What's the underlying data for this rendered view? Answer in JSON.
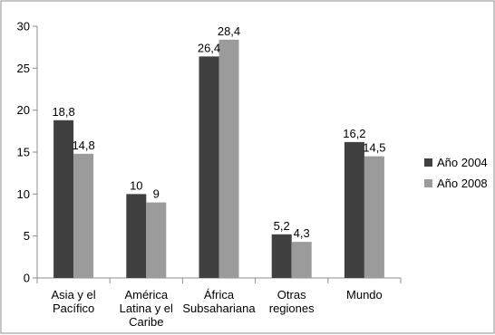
{
  "chart_data": {
    "type": "bar",
    "categories": [
      [
        "Asia y el",
        "Pacífico"
      ],
      [
        "América",
        "Latina y el",
        "Caribe"
      ],
      [
        "África",
        "Subsahariana"
      ],
      [
        "Otras",
        "regiones"
      ],
      [
        "Mundo"
      ]
    ],
    "series": [
      {
        "name": "Año 2004",
        "color": "#404040",
        "values": [
          18.8,
          10,
          26.4,
          5.2,
          16.2
        ],
        "labels": [
          "18,8",
          "10",
          "26,4",
          "5,2",
          "16,2"
        ]
      },
      {
        "name": "Año 2008",
        "color": "#9b9b9b",
        "values": [
          14.8,
          9,
          28.4,
          4.3,
          14.5
        ],
        "labels": [
          "14,8",
          "9",
          "28,4",
          "4,3",
          "14,5"
        ]
      }
    ],
    "ylim": [
      0,
      30
    ],
    "yticks": [
      0,
      5,
      10,
      15,
      20,
      25,
      30
    ],
    "grid": false,
    "legend_position": "right",
    "title": "",
    "xlabel": "",
    "ylabel": ""
  }
}
